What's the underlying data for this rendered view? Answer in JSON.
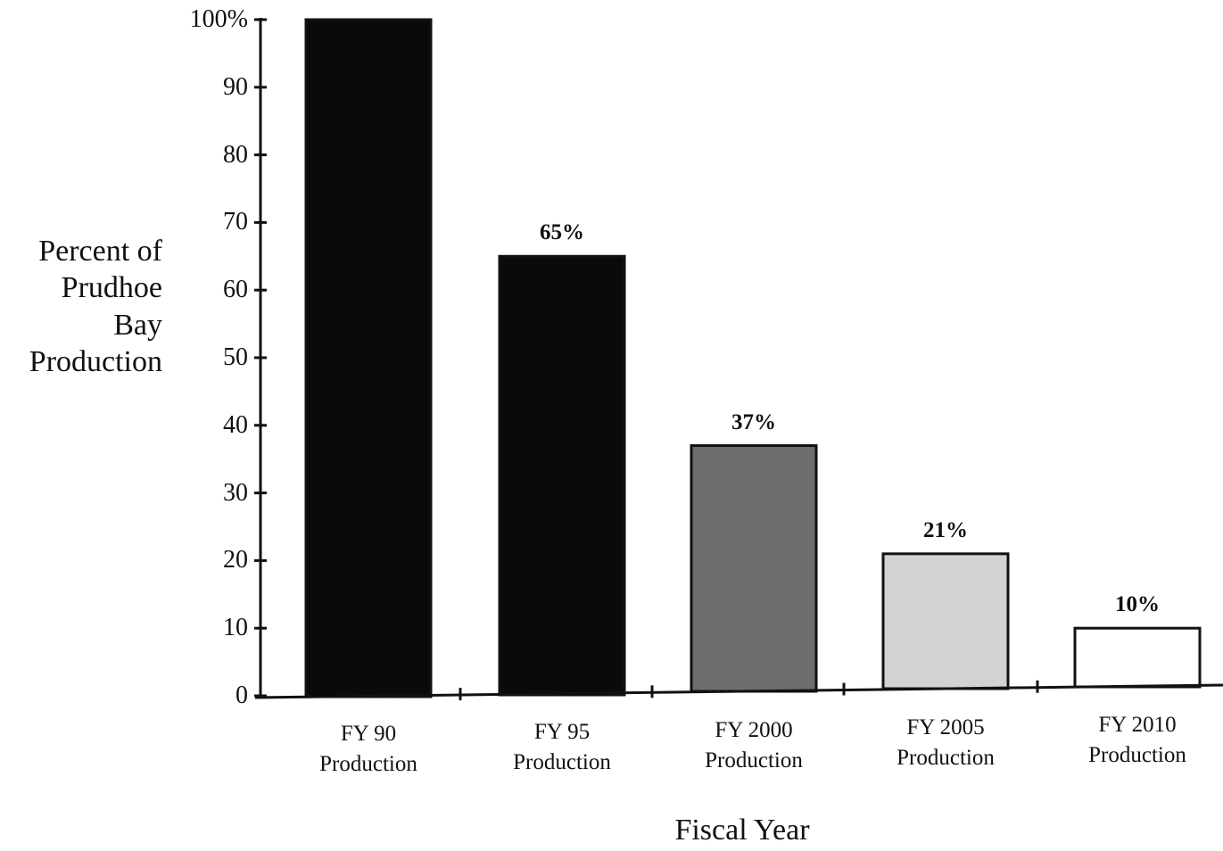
{
  "chart_data": {
    "type": "bar",
    "title": "",
    "xlabel": "Fiscal Year",
    "ylabel_lines": [
      "Percent of",
      "Prudhoe",
      "Bay",
      "Production"
    ],
    "categories": [
      {
        "line1": "FY 90",
        "line2": "Production"
      },
      {
        "line1": "FY 95",
        "line2": "Production"
      },
      {
        "line1": "FY 2000",
        "line2": "Production"
      },
      {
        "line1": "FY 2005",
        "line2": "Production"
      },
      {
        "line1": "FY 2010",
        "line2": "Production"
      }
    ],
    "values": [
      100,
      65,
      37,
      21,
      10
    ],
    "data_labels": [
      "",
      "65%",
      "37%",
      "21%",
      "10%"
    ],
    "bar_colors": [
      "#0a0a0a",
      "#0a0a0a",
      "#6e6e6e",
      "#d2d2d2",
      "#ffffff"
    ],
    "yticks": [
      0,
      10,
      20,
      30,
      40,
      50,
      60,
      70,
      80,
      90,
      100
    ],
    "ytick_labels": [
      "0",
      "10",
      "20",
      "30",
      "40",
      "50",
      "60",
      "70",
      "80",
      "90",
      "100%"
    ],
    "ylim": [
      0,
      100
    ],
    "grid": false,
    "legend": "none"
  }
}
